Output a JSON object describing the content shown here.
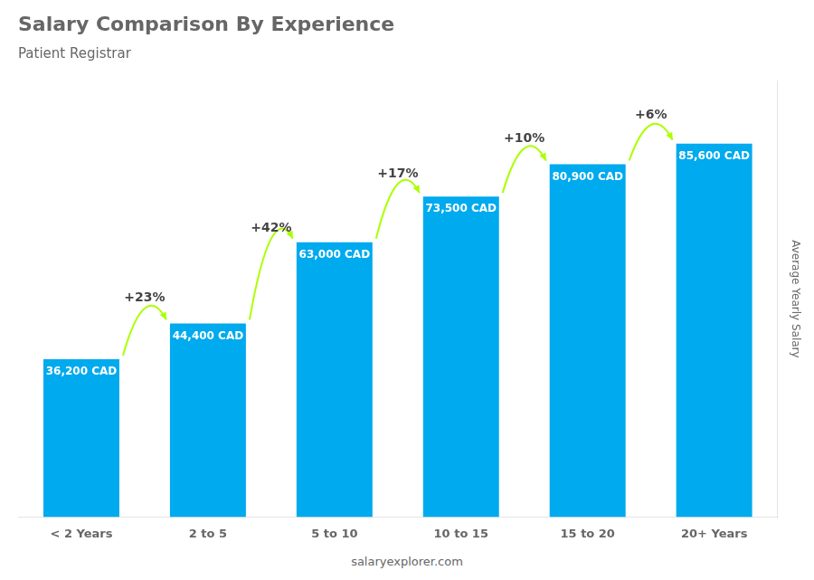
{
  "chart_data": {
    "type": "bar",
    "title": "Salary Comparison By Experience",
    "subtitle": "Patient Registrar",
    "categories": [
      "< 2 Years",
      "2 to 5",
      "5 to 10",
      "10 to 15",
      "15 to 20",
      "20+ Years"
    ],
    "values": [
      36200,
      44400,
      63000,
      73500,
      80900,
      85600
    ],
    "value_labels": [
      "36,200 CAD",
      "44,400 CAD",
      "63,000 CAD",
      "73,500 CAD",
      "80,900 CAD",
      "85,600 CAD"
    ],
    "data_labels": true,
    "color": "#00aaee",
    "ylabel": "Average Yearly Salary",
    "ylim": [
      0,
      100000
    ],
    "grid": false,
    "tick_labels": "x",
    "annotations": [
      {
        "text": "+23%",
        "color": "#aaff00"
      },
      {
        "text": "+42%",
        "color": "#aaff00"
      },
      {
        "text": "+17%",
        "color": "#aaff00"
      },
      {
        "text": "+10%",
        "color": "#aaff00"
      },
      {
        "text": "+6%",
        "color": "#aaff00"
      }
    ],
    "footer": "salaryexplorer.com"
  }
}
